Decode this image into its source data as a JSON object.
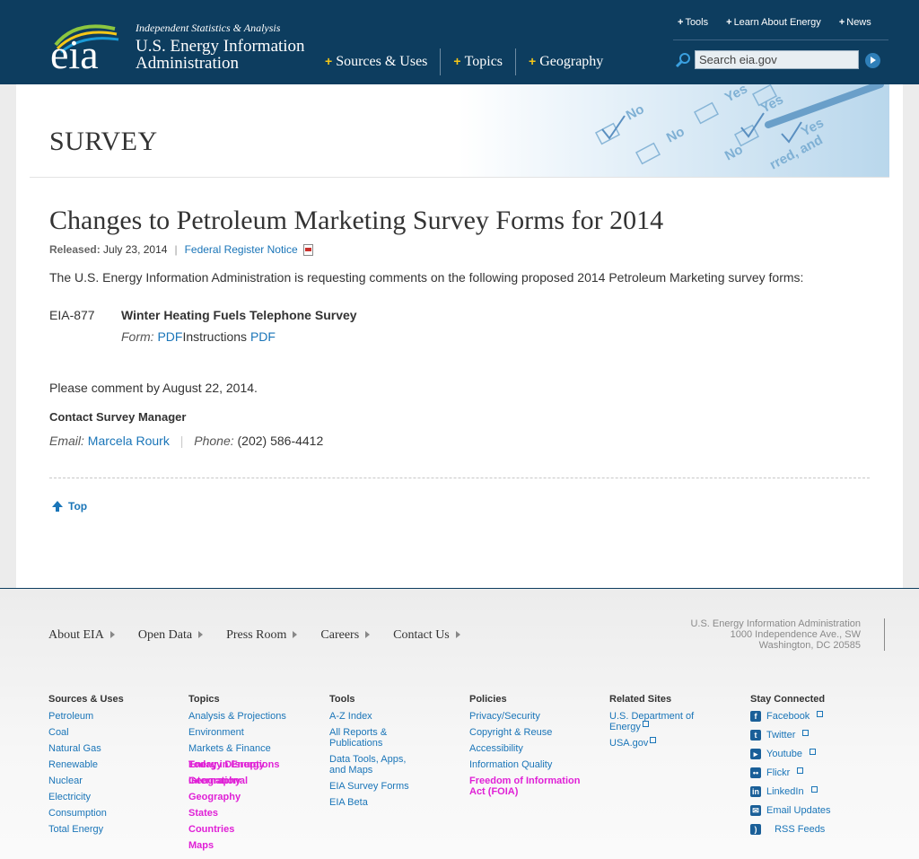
{
  "header": {
    "tagline": "Independent Statistics & Analysis",
    "agency_name": "U.S. Energy Information Administration",
    "logo_text": "eia",
    "top_links": [
      "Tools",
      "Learn About Energy",
      "News"
    ],
    "main_nav": [
      "Sources & Uses",
      "Topics",
      "Geography"
    ],
    "search_placeholder": "Search eia.gov"
  },
  "banner": {
    "title": "SURVEY"
  },
  "article": {
    "title": "Changes to Petroleum Marketing Survey Forms for 2014",
    "released_label": "Released:",
    "released_date": "July 23, 2014",
    "federal_register_link": "Federal Register Notice",
    "intro": "The U.S. Energy Information Administration is requesting comments on the following proposed 2014 Petroleum Marketing survey forms:",
    "form": {
      "code": "EIA-877",
      "name": "Winter Heating Fuels Telephone Survey",
      "form_label": "Form:",
      "form_link": "PDF",
      "instructions_label": "Instructions",
      "instructions_link": "PDF"
    },
    "deadline": "Please comment by August 22, 2014.",
    "contact_heading": "Contact Survey Manager",
    "email_label": "Email:",
    "contact_name": "Marcela Rourk",
    "phone_label": "Phone:",
    "phone": "(202) 586-4412",
    "top_link": "Top"
  },
  "footer": {
    "nav": [
      "About EIA",
      "Open Data",
      "Press Room",
      "Careers",
      "Contact Us"
    ],
    "address": [
      "U.S. Energy Information Administration",
      "1000 Independence Ave., SW",
      "Washington, DC 20585"
    ],
    "columns": {
      "sources": {
        "heading": "Sources & Uses",
        "links": [
          "Petroleum",
          "Coal",
          "Natural Gas",
          "Renewable",
          "Nuclear",
          "Electricity",
          "Consumption",
          "Total Energy"
        ]
      },
      "topics": {
        "heading": "Topics",
        "links": [
          "Analysis & Projections",
          "Environment",
          "Markets & Finance"
        ],
        "overlapped": [
          "Today in Energy",
          "Energy Disruptions",
          "Geography",
          "International",
          "Geography",
          "States",
          "Countries",
          "Maps"
        ]
      },
      "tools": {
        "heading": "Tools",
        "links": [
          "A-Z Index",
          "All Reports & Publications",
          "Data Tools, Apps, and Maps",
          "EIA Survey Forms",
          "EIA Beta"
        ]
      },
      "policies": {
        "heading": "Policies",
        "links": [
          "Privacy/Security",
          "Copyright & Reuse",
          "Accessibility",
          "Information Quality"
        ],
        "highlight": "Freedom of Information Act (FOIA)"
      },
      "related": {
        "heading": "Related Sites",
        "links": [
          "U.S. Department of Energy",
          "USA.gov"
        ]
      },
      "connected": {
        "heading": "Stay Connected",
        "links": [
          "Facebook",
          "Twitter",
          "Youtube",
          "Flickr",
          "LinkedIn",
          "Email Updates",
          "RSS Feeds"
        ]
      }
    }
  }
}
